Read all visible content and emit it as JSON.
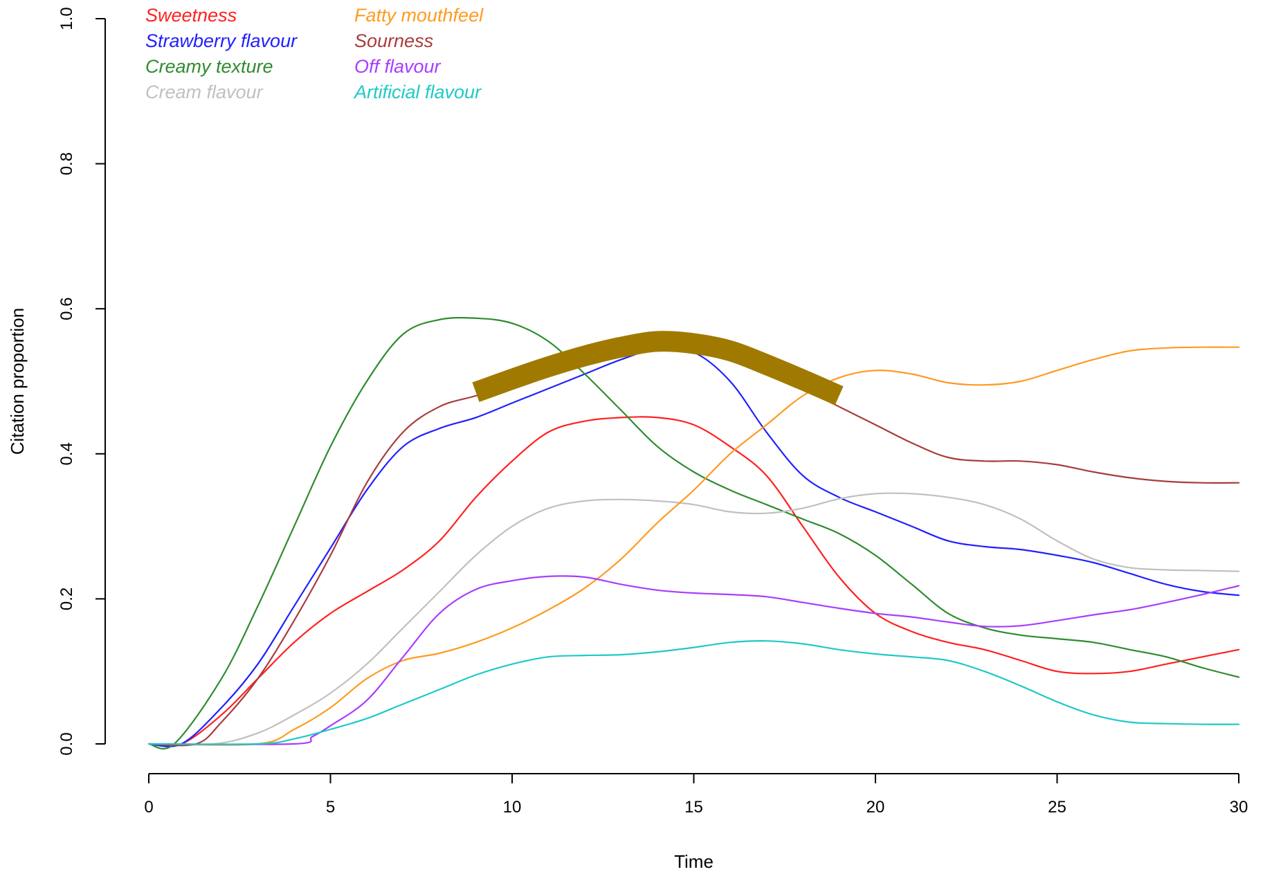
{
  "chart_data": {
    "type": "line",
    "xlabel": "Time",
    "ylabel": "Citation proportion",
    "xlim": [
      0,
      30
    ],
    "ylim": [
      0,
      1
    ],
    "x_ticks": [
      "0",
      "5",
      "10",
      "15",
      "20",
      "25",
      "30"
    ],
    "y_ticks": [
      "0.0",
      "0.2",
      "0.4",
      "0.6",
      "0.8",
      "1.0"
    ],
    "legend_position": "top-left",
    "grid": false,
    "series": [
      {
        "name": "Sweetness",
        "color": "#ff2020",
        "x": [
          0,
          0.9,
          2,
          3,
          4,
          5,
          6,
          7,
          8,
          9,
          10,
          11,
          12,
          13,
          14,
          15,
          16,
          17,
          18,
          19,
          20,
          21,
          22,
          23,
          24,
          25,
          26,
          27,
          28,
          29,
          30
        ],
        "y": [
          0,
          0,
          0.04,
          0.09,
          0.14,
          0.18,
          0.21,
          0.24,
          0.28,
          0.34,
          0.39,
          0.43,
          0.445,
          0.45,
          0.45,
          0.44,
          0.41,
          0.37,
          0.3,
          0.23,
          0.18,
          0.155,
          0.14,
          0.13,
          0.115,
          0.1,
          0.097,
          0.1,
          0.11,
          0.12,
          0.13
        ]
      },
      {
        "name": "Strawberry flavour",
        "color": "#2020ff",
        "x": [
          0,
          0.9,
          2,
          3,
          4,
          5,
          6,
          7,
          8,
          9,
          10,
          11,
          12,
          13,
          14,
          15,
          16,
          17,
          18,
          19,
          20,
          21,
          22,
          23,
          24,
          25,
          26,
          27,
          28,
          29,
          30
        ],
        "y": [
          0,
          0,
          0.05,
          0.11,
          0.19,
          0.27,
          0.35,
          0.41,
          0.435,
          0.45,
          0.47,
          0.49,
          0.51,
          0.53,
          0.545,
          0.54,
          0.5,
          0.43,
          0.37,
          0.34,
          0.32,
          0.3,
          0.28,
          0.272,
          0.268,
          0.26,
          0.25,
          0.235,
          0.22,
          0.21,
          0.205
        ]
      },
      {
        "name": "Creamy texture",
        "color": "#2e8b2e",
        "x": [
          0,
          0.7,
          2,
          3,
          4,
          5,
          6,
          7,
          8,
          9,
          10,
          11,
          12,
          13,
          14,
          15,
          16,
          17,
          18,
          19,
          20,
          21,
          22,
          23,
          24,
          25,
          26,
          27,
          28,
          29,
          30
        ],
        "y": [
          0,
          0,
          0.09,
          0.19,
          0.3,
          0.41,
          0.5,
          0.565,
          0.585,
          0.587,
          0.58,
          0.555,
          0.51,
          0.46,
          0.41,
          0.375,
          0.35,
          0.33,
          0.31,
          0.29,
          0.26,
          0.22,
          0.18,
          0.16,
          0.15,
          0.145,
          0.14,
          0.13,
          0.12,
          0.105,
          0.092
        ]
      },
      {
        "name": "Cream flavour",
        "color": "#c0c0c0",
        "x": [
          0,
          1.8,
          3,
          4,
          5,
          6,
          7,
          8,
          9,
          10,
          11,
          12,
          13,
          14,
          15,
          16,
          17,
          18,
          19,
          20,
          21,
          22,
          23,
          24,
          25,
          26,
          27,
          28,
          29,
          30
        ],
        "y": [
          0,
          0,
          0.015,
          0.04,
          0.07,
          0.11,
          0.16,
          0.21,
          0.26,
          0.3,
          0.325,
          0.335,
          0.337,
          0.335,
          0.33,
          0.32,
          0.318,
          0.325,
          0.338,
          0.345,
          0.345,
          0.34,
          0.33,
          0.31,
          0.28,
          0.255,
          0.243,
          0.24,
          0.239,
          0.238
        ]
      },
      {
        "name": "Fatty mouthfeel",
        "color": "#ff9a20",
        "x": [
          0,
          3,
          4,
          5,
          6,
          7,
          8,
          9,
          10,
          11,
          12,
          13,
          14,
          15,
          16,
          17,
          18,
          19,
          20,
          21,
          22,
          23,
          24,
          25,
          26,
          27,
          28,
          29,
          30
        ],
        "y": [
          0,
          0,
          0.02,
          0.05,
          0.09,
          0.115,
          0.125,
          0.14,
          0.16,
          0.185,
          0.215,
          0.255,
          0.305,
          0.35,
          0.4,
          0.44,
          0.48,
          0.505,
          0.515,
          0.51,
          0.498,
          0.495,
          0.5,
          0.515,
          0.53,
          0.542,
          0.546,
          0.547,
          0.547
        ]
      },
      {
        "name": "Sourness",
        "color": "#a83c3c",
        "x": [
          0,
          1.3,
          2,
          3,
          4,
          5,
          6,
          7,
          8,
          9,
          10,
          11,
          12,
          13,
          14,
          15,
          16,
          17,
          18,
          19,
          20,
          21,
          22,
          23,
          24,
          25,
          26,
          27,
          28,
          29,
          30
        ],
        "y": [
          0,
          0,
          0.03,
          0.09,
          0.17,
          0.26,
          0.36,
          0.43,
          0.465,
          0.48,
          0.495,
          0.51,
          0.525,
          0.54,
          0.548,
          0.548,
          0.535,
          0.515,
          0.49,
          0.465,
          0.44,
          0.415,
          0.395,
          0.39,
          0.39,
          0.385,
          0.375,
          0.367,
          0.362,
          0.36,
          0.36
        ]
      },
      {
        "name": "Off flavour",
        "color": "#a83cff",
        "x": [
          0,
          4,
          4.5,
          5,
          6,
          7,
          8,
          9,
          10,
          11,
          12,
          13,
          14,
          15,
          16,
          17,
          18,
          19,
          20,
          21,
          22,
          23,
          24,
          25,
          26,
          27,
          28,
          29,
          30
        ],
        "y": [
          0,
          0,
          0.01,
          0.025,
          0.06,
          0.12,
          0.18,
          0.213,
          0.225,
          0.231,
          0.23,
          0.22,
          0.212,
          0.208,
          0.206,
          0.203,
          0.195,
          0.187,
          0.18,
          0.175,
          0.168,
          0.162,
          0.163,
          0.17,
          0.178,
          0.185,
          0.195,
          0.206,
          0.218
        ]
      },
      {
        "name": "Artificial flavour",
        "color": "#20c8c8",
        "x": [
          0,
          3,
          4,
          5,
          6,
          7,
          8,
          9,
          10,
          11,
          12,
          13,
          14,
          15,
          16,
          17,
          18,
          19,
          20,
          21,
          22,
          23,
          24,
          25,
          26,
          27,
          28,
          29,
          30
        ],
        "y": [
          0,
          0,
          0.007,
          0.02,
          0.035,
          0.055,
          0.075,
          0.095,
          0.11,
          0.12,
          0.122,
          0.123,
          0.127,
          0.133,
          0.14,
          0.142,
          0.138,
          0.13,
          0.124,
          0.12,
          0.115,
          0.1,
          0.08,
          0.058,
          0.04,
          0.03,
          0.028,
          0.027,
          0.027
        ]
      }
    ],
    "highlight": {
      "color": "#a07a00",
      "x": [
        9,
        10,
        11,
        12,
        13,
        14,
        15,
        16,
        17,
        18,
        19
      ],
      "y": [
        0.485,
        0.503,
        0.52,
        0.535,
        0.547,
        0.555,
        0.552,
        0.542,
        0.523,
        0.502,
        0.48
      ]
    }
  }
}
